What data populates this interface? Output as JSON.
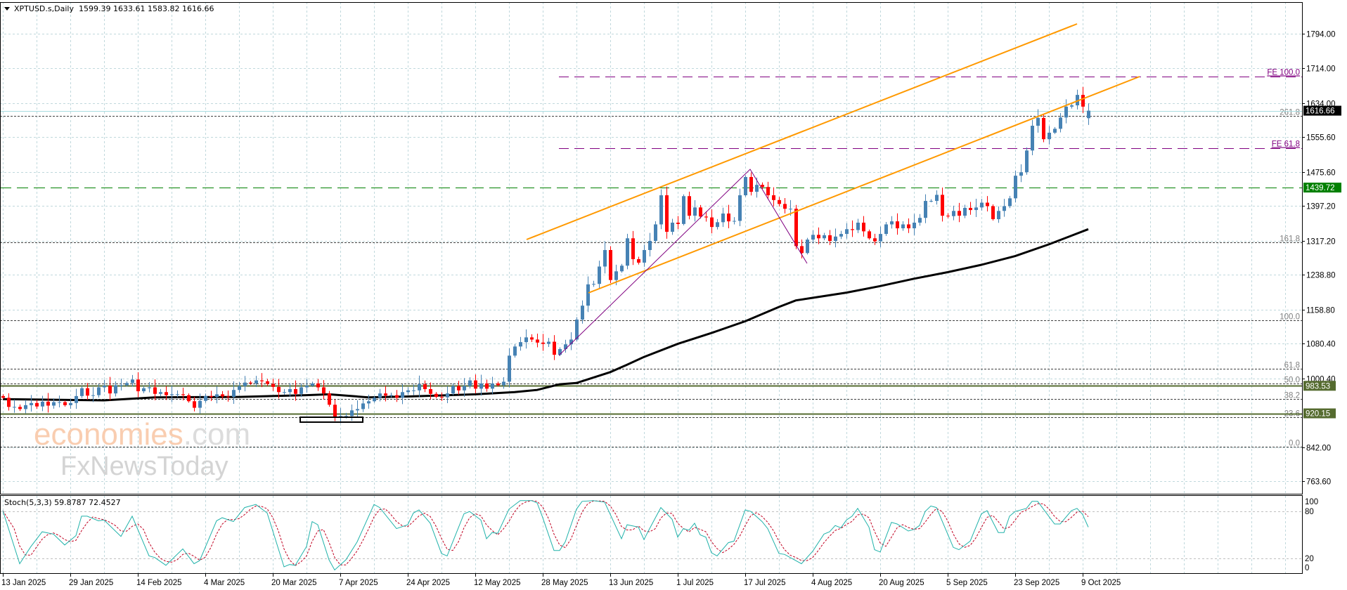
{
  "header": {
    "symbol": "XPTUSD.s,Daily",
    "ohlc": "1599.39 1633.61 1583.82 1616.66",
    "menu_icon": "triangle-down-icon"
  },
  "indicator": {
    "label": "Stoch(5,3,3) 59.8787 72.4527"
  },
  "price_axis": {
    "labels": [
      "1794.00",
      "1714.00",
      "1634.00",
      "1555.60",
      "1475.60",
      "1397.20",
      "1317.20",
      "1238.80",
      "1158.80",
      "1080.40",
      "1000.40",
      "842.00",
      "763.60"
    ]
  },
  "price_tags": [
    {
      "text": "1616.66",
      "price": 1616.66,
      "color": "#000000"
    },
    {
      "text": "1439.72",
      "price": 1439.72,
      "color": "#008000"
    },
    {
      "text": "983.53",
      "price": 983.53,
      "color": "#556b2f"
    },
    {
      "text": "920.15",
      "price": 920.15,
      "color": "#556b2f"
    }
  ],
  "fib_levels": [
    {
      "label": "261.8",
      "price": 1605.4
    },
    {
      "label": "161.8",
      "price": 1314.2
    },
    {
      "label": "100.0",
      "price": 1134.0
    },
    {
      "label": "61.8",
      "price": 1023.2
    },
    {
      "label": "50.0",
      "price": 988.5
    },
    {
      "label": "38.2",
      "price": 953.9
    },
    {
      "label": "23.6",
      "price": 911.7
    },
    {
      "label": "0.0",
      "price": 843.0
    }
  ],
  "fe_levels": [
    {
      "label": "FE 100.0",
      "price": 1695
    },
    {
      "label": "FE 61.8",
      "price": 1531
    }
  ],
  "stoch_axis": [
    {
      "label": "100",
      "value": 100
    },
    {
      "label": "80",
      "value": 80
    },
    {
      "label": "20",
      "value": 20
    },
    {
      "label": "0",
      "value": 0
    }
  ],
  "watermark": {
    "line1a": "economies",
    "line1b": ".com",
    "line2": "FxNewsToday"
  },
  "colors": {
    "bull": "#4682b4",
    "bear": "#ff0000",
    "ma": "#000000",
    "channel": "#ff9900",
    "zigzag": "#800080",
    "fe": "#800080",
    "support": "#556b2f",
    "resistance": "#008000",
    "stoch_main": "#20b2aa",
    "stoch_signal": "#c00020",
    "grid": "#c0d8dc"
  },
  "chart_data": {
    "type": "candlestick",
    "title": "XPTUSD.s,Daily",
    "ylim": [
      735.1,
      1866.5
    ],
    "grid": true,
    "last_bar": {
      "open": 1599.39,
      "high": 1633.61,
      "low": 1583.82,
      "close": 1616.66
    },
    "x_ticks": [
      {
        "label": "13 Jan 2025",
        "bar": 0
      },
      {
        "label": "29 Jan 2025",
        "bar": 12
      },
      {
        "label": "14 Feb 2025",
        "bar": 24
      },
      {
        "label": "4 Mar 2025",
        "bar": 36
      },
      {
        "label": "20 Mar 2025",
        "bar": 48
      },
      {
        "label": "7 Apr 2025",
        "bar": 60
      },
      {
        "label": "24 Apr 2025",
        "bar": 72
      },
      {
        "label": "12 May 2025",
        "bar": 84
      },
      {
        "label": "28 May 2025",
        "bar": 96
      },
      {
        "label": "13 Jun 2025",
        "bar": 108
      },
      {
        "label": "1 Jul 2025",
        "bar": 120
      },
      {
        "label": "17 Jul 2025",
        "bar": 132
      },
      {
        "label": "4 Aug 2025",
        "bar": 144
      },
      {
        "label": "20 Aug 2025",
        "bar": 156
      },
      {
        "label": "5 Sep 2025",
        "bar": 168
      },
      {
        "label": "23 Sep 2025",
        "bar": 180
      },
      {
        "label": "9 Oct 2025",
        "bar": 192
      }
    ],
    "close": [
      956,
      935,
      935,
      930,
      939,
      944,
      936,
      947,
      938,
      946,
      946,
      939,
      944,
      960,
      978,
      961,
      962,
      980,
      984,
      966,
      985,
      985,
      990,
      998,
      971,
      978,
      980,
      965,
      969,
      962,
      964,
      964,
      962,
      948,
      933,
      949,
      960,
      958,
      964,
      959,
      958,
      974,
      983,
      991,
      989,
      996,
      994,
      988,
      981,
      969,
      969,
      976,
      965,
      980,
      984,
      989,
      980,
      966,
      940,
      912,
      914,
      914,
      927,
      930,
      943,
      948,
      956,
      966,
      961,
      962,
      956,
      969,
      973,
      973,
      987,
      976,
      965,
      958,
      957,
      966,
      983,
      973,
      983,
      996,
      977,
      989,
      977,
      989,
      985,
      993,
      1053,
      1074,
      1084,
      1095,
      1090,
      1083,
      1080,
      1085,
      1055,
      1068,
      1079,
      1090,
      1136,
      1168,
      1217,
      1218,
      1258,
      1296,
      1227,
      1247,
      1260,
      1323,
      1275,
      1267,
      1296,
      1317,
      1355,
      1422,
      1338,
      1359,
      1356,
      1420,
      1375,
      1394,
      1373,
      1371,
      1349,
      1360,
      1380,
      1362,
      1363,
      1422,
      1464,
      1430,
      1446,
      1441,
      1422,
      1411,
      1402,
      1391,
      1391,
      1305,
      1289,
      1320,
      1331,
      1323,
      1330,
      1317,
      1327,
      1333,
      1344,
      1342,
      1359,
      1339,
      1323,
      1316,
      1333,
      1355,
      1362,
      1346,
      1355,
      1346,
      1359,
      1370,
      1409,
      1409,
      1423,
      1375,
      1374,
      1386,
      1375,
      1393,
      1388,
      1394,
      1405,
      1397,
      1367,
      1386,
      1397,
      1415,
      1467,
      1475,
      1525,
      1582,
      1600,
      1551,
      1566,
      1575,
      1601,
      1626,
      1629,
      1653,
      1626,
      1616.66
    ],
    "moving_average": [
      [
        0,
        953
      ],
      [
        18,
        950
      ],
      [
        27,
        957
      ],
      [
        42,
        958
      ],
      [
        54,
        962
      ],
      [
        58,
        964
      ],
      [
        65,
        957
      ],
      [
        72,
        959
      ],
      [
        84,
        964
      ],
      [
        91,
        969
      ],
      [
        95,
        974
      ],
      [
        99,
        987
      ],
      [
        102,
        990
      ],
      [
        108,
        1015
      ],
      [
        111,
        1032
      ],
      [
        114,
        1050
      ],
      [
        120,
        1080
      ],
      [
        126,
        1105
      ],
      [
        132,
        1132
      ],
      [
        138,
        1165
      ],
      [
        141,
        1180
      ],
      [
        144,
        1186
      ],
      [
        150,
        1198
      ],
      [
        156,
        1213
      ],
      [
        162,
        1230
      ],
      [
        168,
        1245
      ],
      [
        174,
        1262
      ],
      [
        180,
        1282
      ],
      [
        186,
        1309
      ],
      [
        193,
        1344
      ]
    ],
    "stochastic": {
      "ylim": [
        0,
        100
      ],
      "levels": [
        20,
        80
      ],
      "main_last": 59.8787,
      "signal_last": 72.4527,
      "main": [
        [
          0,
          81
        ],
        [
          3,
          13
        ],
        [
          5,
          35
        ],
        [
          7,
          54
        ],
        [
          9,
          51
        ],
        [
          11,
          37
        ],
        [
          13,
          49
        ],
        [
          14,
          74
        ],
        [
          15,
          74
        ],
        [
          17,
          68
        ],
        [
          18,
          69
        ],
        [
          21,
          48
        ],
        [
          23,
          74
        ],
        [
          26,
          23
        ],
        [
          27,
          21
        ],
        [
          29,
          11
        ],
        [
          32,
          32
        ],
        [
          34,
          13
        ],
        [
          35,
          17
        ],
        [
          38,
          68
        ],
        [
          39,
          72
        ],
        [
          41,
          67
        ],
        [
          43,
          85
        ],
        [
          45,
          89
        ],
        [
          47,
          78
        ],
        [
          50,
          9
        ],
        [
          51,
          12
        ],
        [
          52,
          11
        ],
        [
          54,
          35
        ],
        [
          55,
          67
        ],
        [
          56,
          63
        ],
        [
          58,
          18
        ],
        [
          59,
          5
        ],
        [
          61,
          18
        ],
        [
          63,
          41
        ],
        [
          66,
          89
        ],
        [
          67,
          85
        ],
        [
          70,
          58
        ],
        [
          72,
          63
        ],
        [
          73,
          78
        ],
        [
          74,
          82
        ],
        [
          76,
          65
        ],
        [
          78,
          26
        ],
        [
          79,
          23
        ],
        [
          82,
          77
        ],
        [
          83,
          80
        ],
        [
          85,
          69
        ],
        [
          86,
          45
        ],
        [
          87,
          53
        ],
        [
          88,
          52
        ],
        [
          90,
          83
        ],
        [
          92,
          94
        ],
        [
          94,
          94
        ],
        [
          95,
          91
        ],
        [
          96,
          72
        ],
        [
          98,
          30
        ],
        [
          99,
          30
        ],
        [
          100,
          41
        ],
        [
          102,
          83
        ],
        [
          103,
          93
        ],
        [
          105,
          94
        ],
        [
          107,
          92
        ],
        [
          110,
          45
        ],
        [
          111,
          63
        ],
        [
          113,
          60
        ],
        [
          114,
          44
        ],
        [
          115,
          58
        ],
        [
          117,
          85
        ],
        [
          119,
          70
        ],
        [
          120,
          47
        ],
        [
          121,
          58
        ],
        [
          122,
          56
        ],
        [
          123,
          65
        ],
        [
          124,
          50
        ],
        [
          125,
          47
        ],
        [
          126,
          27
        ],
        [
          127,
          23
        ],
        [
          129,
          40
        ],
        [
          130,
          42
        ],
        [
          132,
          82
        ],
        [
          133,
          80
        ],
        [
          135,
          67
        ],
        [
          136,
          58
        ],
        [
          138,
          26
        ],
        [
          139,
          25
        ],
        [
          142,
          13
        ],
        [
          144,
          29
        ],
        [
          146,
          51
        ],
        [
          147,
          54
        ],
        [
          148,
          62
        ],
        [
          149,
          59
        ],
        [
          150,
          69
        ],
        [
          151,
          74
        ],
        [
          152,
          84
        ],
        [
          154,
          60
        ],
        [
          155,
          31
        ],
        [
          156,
          28
        ],
        [
          158,
          66
        ],
        [
          159,
          64
        ],
        [
          161,
          55
        ],
        [
          162,
          57
        ],
        [
          163,
          62
        ],
        [
          164,
          80
        ],
        [
          165,
          87
        ],
        [
          166,
          85
        ],
        [
          169,
          34
        ],
        [
          170,
          31
        ],
        [
          172,
          42
        ],
        [
          174,
          77
        ],
        [
          175,
          81
        ],
        [
          177,
          53
        ],
        [
          178,
          53
        ],
        [
          179,
          74
        ],
        [
          180,
          80
        ],
        [
          182,
          84
        ],
        [
          183,
          93
        ],
        [
          184,
          93
        ],
        [
          187,
          64
        ],
        [
          188,
          64
        ],
        [
          190,
          81
        ],
        [
          191,
          84
        ],
        [
          192,
          76
        ],
        [
          193,
          59.88
        ]
      ]
    }
  }
}
